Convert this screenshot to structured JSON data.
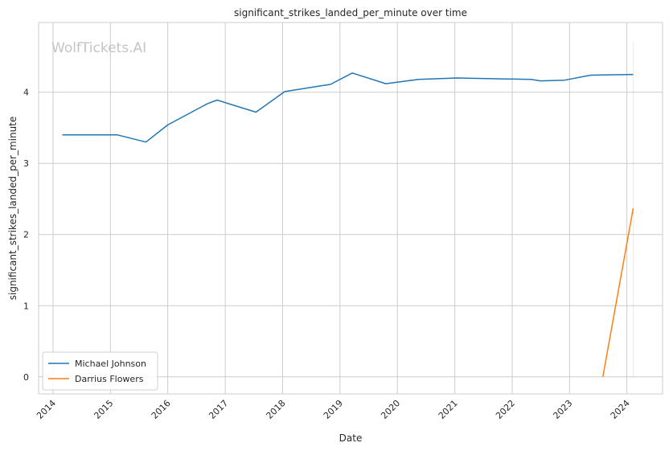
{
  "watermark": "WolfTickets.AI",
  "chart_data": {
    "type": "line",
    "title": "significant_strikes_landed_per_minute over time",
    "xlabel": "Date",
    "ylabel": "significant_strikes_landed_per_minute",
    "x_tick_labels": [
      "2014",
      "2015",
      "2016",
      "2017",
      "2018",
      "2019",
      "2020",
      "2021",
      "2022",
      "2023",
      "2024"
    ],
    "y_ticks": [
      0,
      1,
      2,
      3,
      4
    ],
    "xlim": [
      "2013-10-01",
      "2024-08-15"
    ],
    "ylim": [
      -0.24,
      4.98
    ],
    "grid": true,
    "legend_position": "lower-left",
    "series": [
      {
        "name": "Michael Johnson",
        "color": "#1f77b4",
        "points": [
          [
            "2014-03-01",
            3.4
          ],
          [
            "2015-02-15",
            3.4
          ],
          [
            "2015-08-15",
            3.3
          ],
          [
            "2016-01-01",
            3.54
          ],
          [
            "2016-09-10",
            3.84
          ],
          [
            "2016-11-10",
            3.89
          ],
          [
            "2017-07-15",
            3.72
          ],
          [
            "2018-01-15",
            4.01
          ],
          [
            "2018-09-01",
            4.09
          ],
          [
            "2018-11-01",
            4.11
          ],
          [
            "2019-03-20",
            4.27
          ],
          [
            "2019-10-20",
            4.12
          ],
          [
            "2020-05-15",
            4.18
          ],
          [
            "2021-01-15",
            4.2
          ],
          [
            "2022-05-01",
            4.18
          ],
          [
            "2022-07-01",
            4.16
          ],
          [
            "2022-12-01",
            4.17
          ],
          [
            "2023-05-15",
            4.24
          ],
          [
            "2024-02-10",
            4.25
          ]
        ]
      },
      {
        "name": "Darrius Flowers",
        "color": "#ff7f0e",
        "points": [
          [
            "2023-08-01",
            0.0
          ],
          [
            "2024-02-10",
            2.37
          ]
        ],
        "band": {
          "x": "2024-02-10",
          "low": 0.0,
          "high": 4.72
        }
      }
    ]
  }
}
